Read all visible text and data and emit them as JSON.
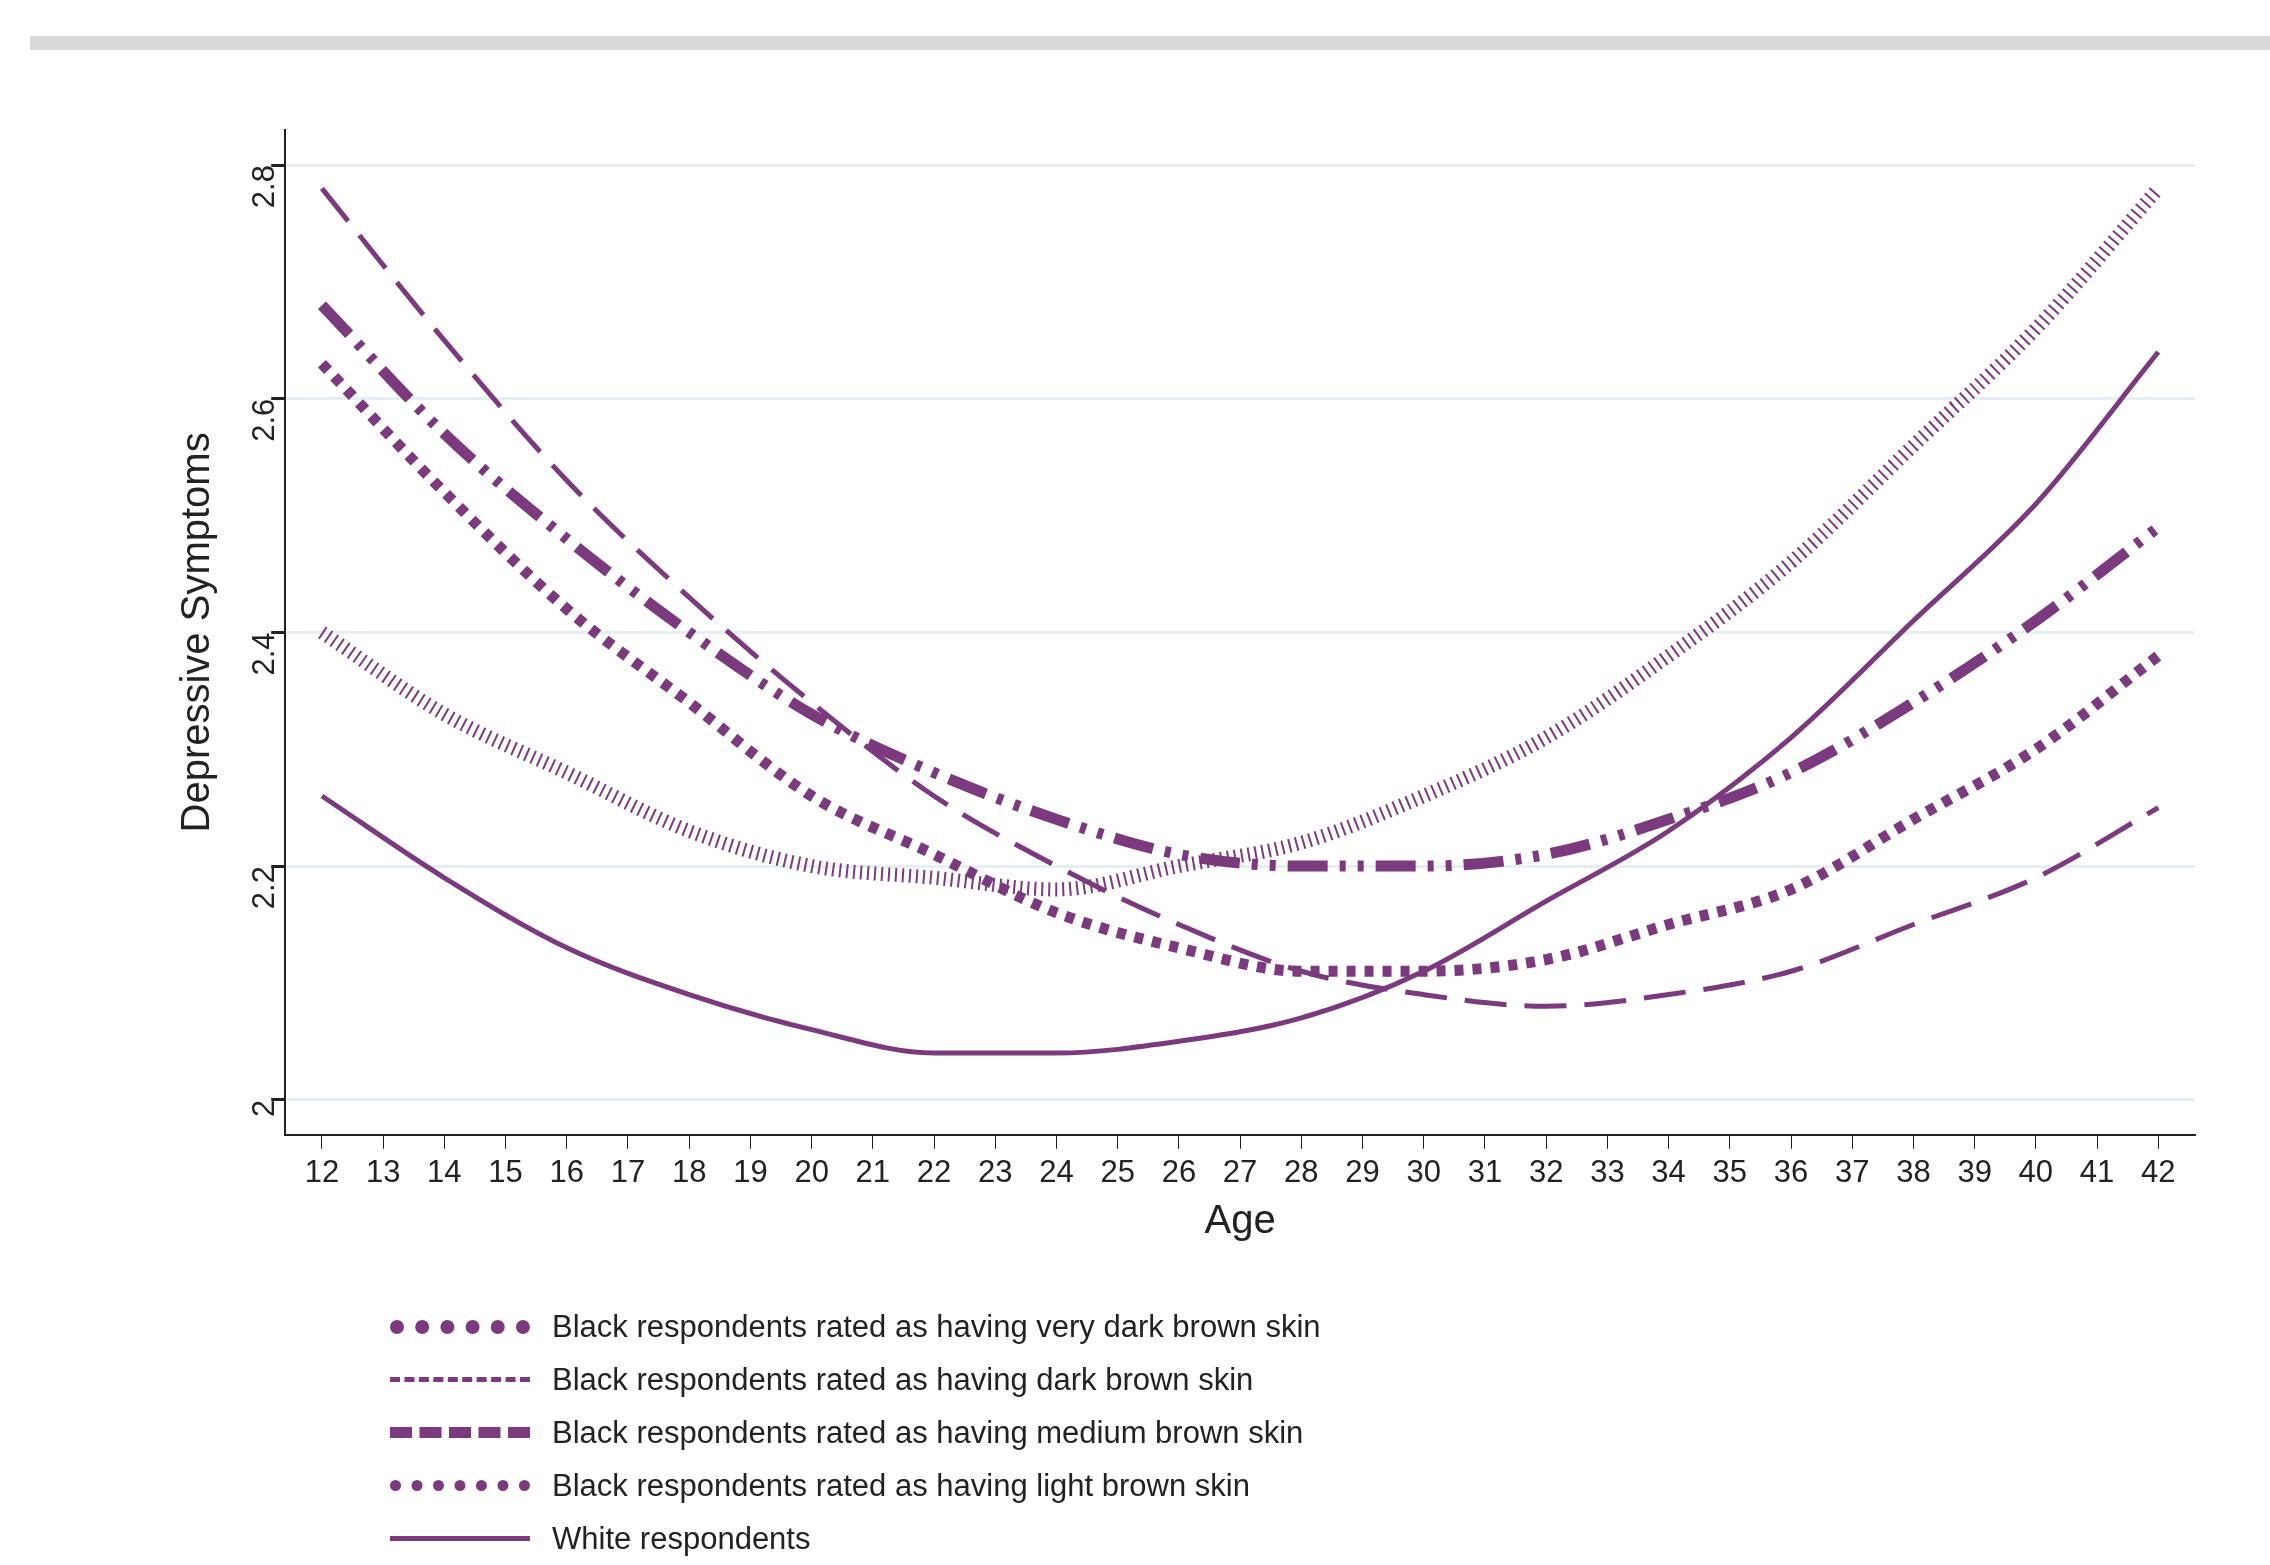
{
  "chart_data": {
    "type": "line",
    "xlabel": "Age",
    "ylabel": "Depressive Symptoms",
    "x": [
      12,
      14,
      16,
      18,
      20,
      22,
      24,
      26,
      28,
      30,
      32,
      34,
      36,
      38,
      40,
      42
    ],
    "xlim": [
      11.4,
      42.6
    ],
    "xticks": [
      12,
      13,
      14,
      15,
      16,
      17,
      18,
      19,
      20,
      21,
      22,
      23,
      24,
      25,
      26,
      27,
      28,
      29,
      30,
      31,
      32,
      33,
      34,
      35,
      36,
      37,
      38,
      39,
      40,
      41,
      42
    ],
    "ylim": [
      1.97,
      2.83
    ],
    "yticks": [
      2,
      2.2,
      2.4,
      2.6,
      2.8
    ],
    "grid": "y",
    "legend": "bottom",
    "marker": "none",
    "series": [
      {
        "name": "Black respondents rated as having very dark brown skin",
        "color": "#7b3a7e",
        "line_style": "dotted",
        "values": [
          2.4,
          2.33,
          2.28,
          2.23,
          2.2,
          2.19,
          2.18,
          2.2,
          2.22,
          2.26,
          2.31,
          2.38,
          2.46,
          2.56,
          2.66,
          2.78
        ]
      },
      {
        "name": "Black respondents rated as having dark brown skin",
        "color": "#7b3a7e",
        "line_style": "dashed",
        "values": [
          2.78,
          2.65,
          2.53,
          2.43,
          2.34,
          2.26,
          2.2,
          2.15,
          2.11,
          2.09,
          2.08,
          2.09,
          2.11,
          2.15,
          2.19,
          2.25
        ]
      },
      {
        "name": "Black respondents rated as having medium brown skin",
        "color": "#7b3a7e",
        "line_style": "dashed",
        "values": [
          2.68,
          2.57,
          2.48,
          2.4,
          2.33,
          2.28,
          2.24,
          2.21,
          2.2,
          2.2,
          2.21,
          2.24,
          2.28,
          2.34,
          2.41,
          2.49
        ]
      },
      {
        "name": "Black respondents rated as having light brown skin",
        "color": "#7b3a7e",
        "line_style": "dotted",
        "values": [
          2.63,
          2.52,
          2.42,
          2.34,
          2.26,
          2.21,
          2.16,
          2.13,
          2.11,
          2.11,
          2.12,
          2.15,
          2.18,
          2.24,
          2.3,
          2.38
        ]
      },
      {
        "name": "White respondents",
        "color": "#7b3a7e",
        "line_style": "solid",
        "values": [
          2.26,
          2.19,
          2.13,
          2.09,
          2.06,
          2.04,
          2.04,
          2.05,
          2.07,
          2.11,
          2.17,
          2.23,
          2.31,
          2.41,
          2.51,
          2.64
        ]
      }
    ]
  }
}
